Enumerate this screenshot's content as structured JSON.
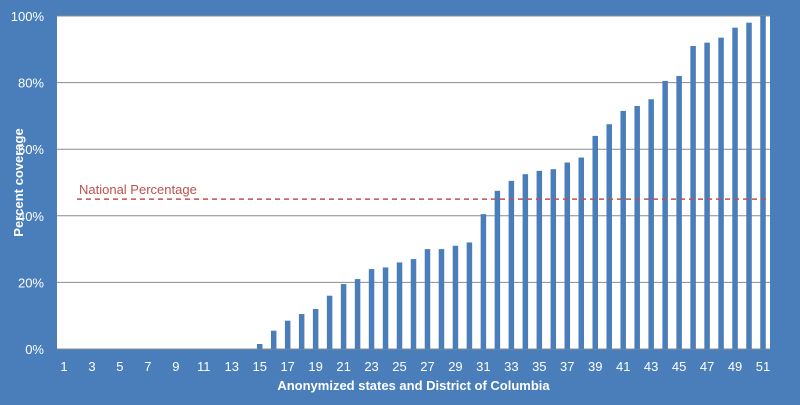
{
  "chart_data": {
    "type": "bar",
    "title": "",
    "xlabel": "Anonymized states and District of Columbia",
    "ylabel": "Percent coverage",
    "ylim": [
      0,
      100
    ],
    "y_ticks": [
      "0%",
      "20%",
      "40%",
      "60%",
      "80%",
      "100%"
    ],
    "x_tick_labels": [
      "1",
      "3",
      "5",
      "7",
      "9",
      "11",
      "13",
      "15",
      "17",
      "19",
      "21",
      "23",
      "25",
      "27",
      "29",
      "31",
      "33",
      "35",
      "37",
      "39",
      "41",
      "43",
      "45",
      "47",
      "49",
      "51"
    ],
    "categories": [
      "1",
      "2",
      "3",
      "4",
      "5",
      "6",
      "7",
      "8",
      "9",
      "10",
      "11",
      "12",
      "13",
      "14",
      "15",
      "16",
      "17",
      "18",
      "19",
      "20",
      "21",
      "22",
      "23",
      "24",
      "25",
      "26",
      "27",
      "28",
      "29",
      "30",
      "31",
      "32",
      "33",
      "34",
      "35",
      "36",
      "37",
      "38",
      "39",
      "40",
      "41",
      "42",
      "43",
      "44",
      "45",
      "46",
      "47",
      "48",
      "49",
      "50",
      "51"
    ],
    "values": [
      0,
      0,
      0,
      0,
      0,
      0,
      0,
      0,
      0,
      0,
      0,
      0,
      0,
      0,
      1.5,
      5.5,
      8.5,
      10.5,
      12,
      16,
      19.5,
      21,
      24,
      24.5,
      26,
      27,
      30,
      30,
      31,
      32,
      40.5,
      47.5,
      50.5,
      52.5,
      53.5,
      54,
      56,
      57.5,
      64,
      67.5,
      71.5,
      73,
      75,
      80.5,
      82,
      91,
      92,
      93.5,
      96.5,
      98,
      100
    ],
    "bar_color": "#4a7ebb",
    "reference_line": {
      "label": "National Percentage",
      "value": 45,
      "color": "#c0504d",
      "style": "dashed"
    },
    "grid": true,
    "grid_color": "#8c8c8c",
    "background_color": "#4a7ebb"
  }
}
